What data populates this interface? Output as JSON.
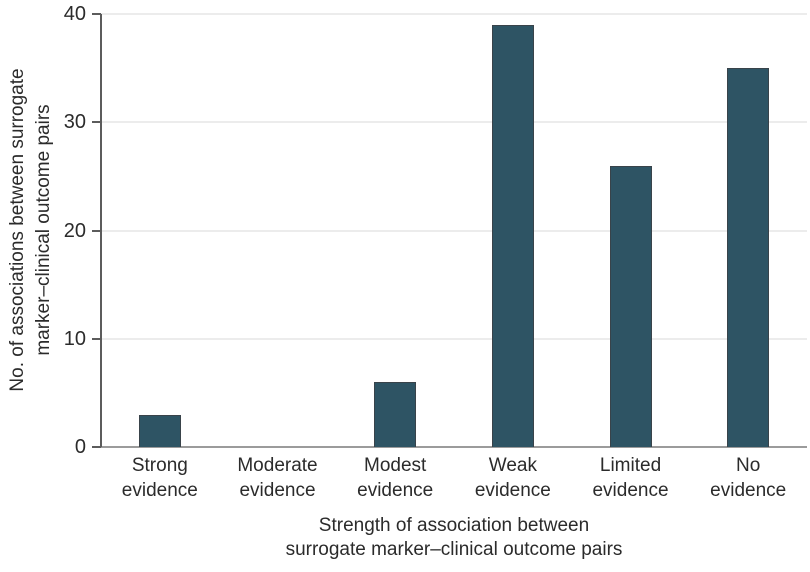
{
  "figure": {
    "background_color": "#ffffff",
    "text_color": "#2b2b2b"
  },
  "chart_data": {
    "type": "bar",
    "title": "",
    "categories": [
      "Strong evidence",
      "Moderate evidence",
      "Modest evidence",
      "Weak evidence",
      "Limited evidence",
      "No evidence"
    ],
    "values": [
      3,
      0,
      6,
      39,
      26,
      35
    ],
    "xlabel": "Strength of association between\nsurrogate marker–clinical outcome pairs",
    "ylabel": "No. of associations between surrogate\nmarker–clinical outcome pairs",
    "ylim": [
      0,
      40
    ],
    "yticks": [
      0,
      10,
      20,
      30,
      40
    ],
    "grid": true,
    "legend": "none",
    "bar_color": "#2e5464",
    "bar_border_color": "#39434a",
    "gridline_color": "#ececec",
    "axis_line_color": "#5c5c5c",
    "baseline_color": "#9b9b9b"
  }
}
